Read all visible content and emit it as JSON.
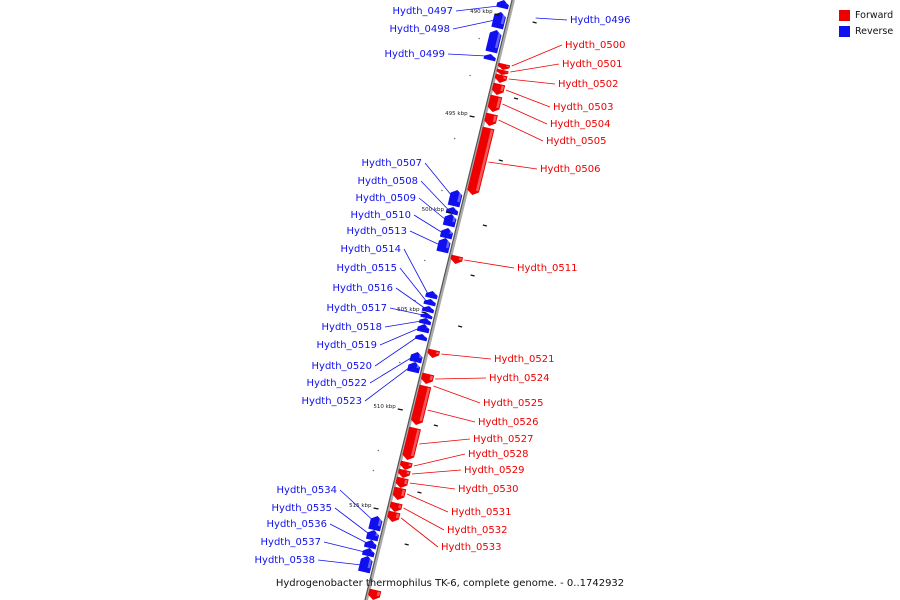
{
  "caption": "Hydrogenobacter thermophilus TK-6, complete genome. - 0..1742932",
  "legend": {
    "items": [
      {
        "label": "Forward",
        "color": "#ee0000"
      },
      {
        "label": "Reverse",
        "color": "#1010ee"
      }
    ]
  },
  "colors": {
    "forward": "#ee0000",
    "reverse": "#1010ee",
    "backbone": "#888888"
  },
  "scale_labels": [
    "490 kbp",
    "495 kbp",
    "500 kbp",
    "505 kbp",
    "510 kbp",
    "515 kbp"
  ],
  "forward_genes": [
    "Hydth_0500",
    "Hydth_0501",
    "Hydth_0502",
    "Hydth_0503",
    "Hydth_0504",
    "Hydth_0505",
    "Hydth_0506",
    "Hydth_0511",
    "Hydth_0521",
    "Hydth_0524",
    "Hydth_0525",
    "Hydth_0526",
    "Hydth_0527",
    "Hydth_0528",
    "Hydth_0529",
    "Hydth_0530",
    "Hydth_0531",
    "Hydth_0532",
    "Hydth_0533"
  ],
  "reverse_genes": [
    "Hydth_0496",
    "Hydth_0497",
    "Hydth_0498",
    "Hydth_0499",
    "Hydth_0507",
    "Hydth_0508",
    "Hydth_0509",
    "Hydth_0510",
    "Hydth_0513",
    "Hydth_0514",
    "Hydth_0515",
    "Hydth_0516",
    "Hydth_0517",
    "Hydth_0518",
    "Hydth_0519",
    "Hydth_0520",
    "Hydth_0522",
    "Hydth_0523",
    "Hydth_0534",
    "Hydth_0535",
    "Hydth_0536",
    "Hydth_0537",
    "Hydth_0538"
  ]
}
